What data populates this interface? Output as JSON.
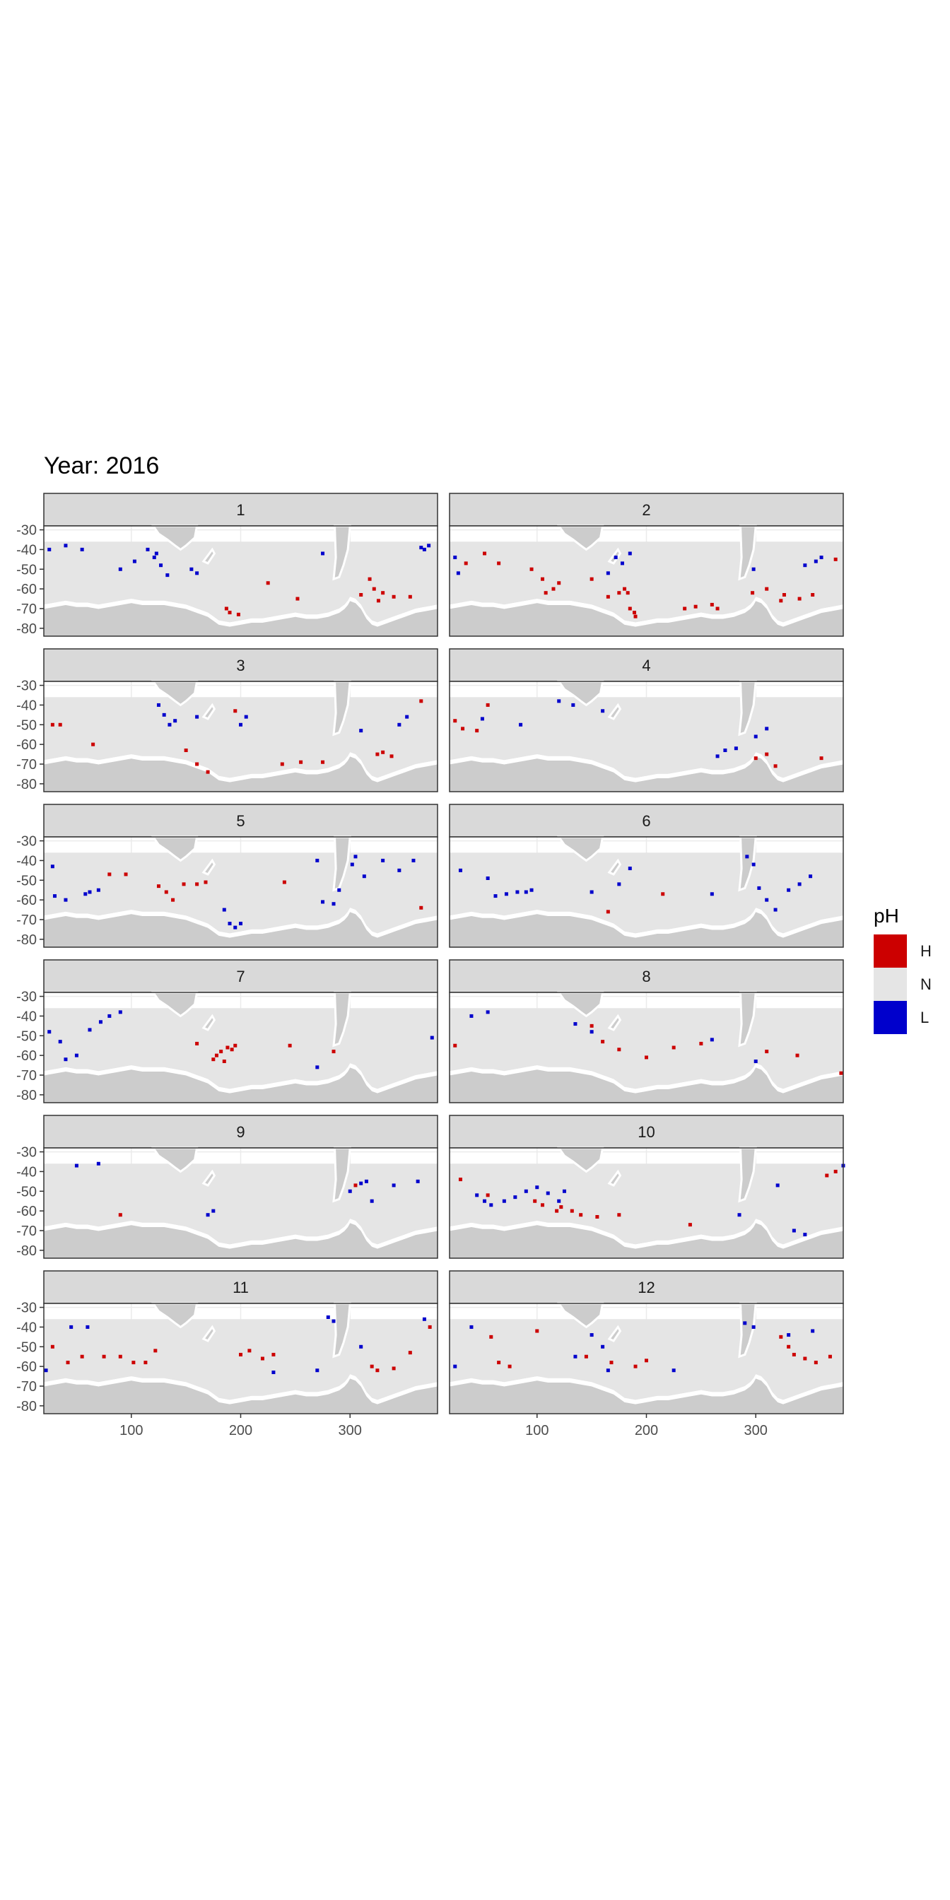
{
  "title": "Year: 2016",
  "legend": {
    "title": "pH",
    "items": [
      {
        "label": "H",
        "color": "#cc0000"
      },
      {
        "label": "N",
        "color": "#e5e5e5"
      },
      {
        "label": "L",
        "color": "#0000cc"
      }
    ]
  },
  "chart_data": {
    "type": "heatmap",
    "title": "Year: 2016",
    "facet_variable": "month",
    "xlabel": "",
    "ylabel": "",
    "xlim": [
      20,
      380
    ],
    "ylim": [
      -84,
      -28
    ],
    "x_ticks": [
      100,
      200,
      300
    ],
    "y_ticks": [
      -30,
      -40,
      -50,
      -60,
      -70,
      -80
    ],
    "y_tick_labels": [
      "-30",
      "-40",
      "-50",
      "-60",
      "-70",
      "-80"
    ],
    "grid": true,
    "legend_position": "right",
    "categories": [
      "H",
      "N",
      "L"
    ],
    "colors": {
      "H": "#cc0000",
      "N": "#e5e5e5",
      "L": "#0000cc",
      "land": "#cccccc"
    },
    "panels": [
      {
        "label": "1",
        "high": [
          [
            190,
            -72
          ],
          [
            187,
            -70
          ],
          [
            198,
            -73
          ],
          [
            225,
            -57
          ],
          [
            252,
            -65
          ],
          [
            318,
            -55
          ],
          [
            322,
            -60
          ],
          [
            326,
            -66
          ],
          [
            330,
            -62
          ],
          [
            340,
            -64
          ],
          [
            355,
            -64
          ],
          [
            310,
            -63
          ]
        ],
        "low": [
          [
            25,
            -40
          ],
          [
            40,
            -38
          ],
          [
            55,
            -40
          ],
          [
            90,
            -50
          ],
          [
            103,
            -46
          ],
          [
            115,
            -40
          ],
          [
            121,
            -44
          ],
          [
            123,
            -42
          ],
          [
            127,
            -48
          ],
          [
            133,
            -53
          ],
          [
            155,
            -50
          ],
          [
            160,
            -52
          ],
          [
            275,
            -42
          ],
          [
            365,
            -39
          ],
          [
            368,
            -40
          ],
          [
            372,
            -38
          ]
        ]
      },
      {
        "label": "2",
        "high": [
          [
            35,
            -47
          ],
          [
            52,
            -42
          ],
          [
            65,
            -47
          ],
          [
            95,
            -50
          ],
          [
            105,
            -55
          ],
          [
            108,
            -62
          ],
          [
            115,
            -60
          ],
          [
            120,
            -57
          ],
          [
            150,
            -55
          ],
          [
            165,
            -64
          ],
          [
            175,
            -62
          ],
          [
            180,
            -60
          ],
          [
            183,
            -62
          ],
          [
            185,
            -70
          ],
          [
            189,
            -72
          ],
          [
            190,
            -74
          ],
          [
            235,
            -70
          ],
          [
            245,
            -69
          ],
          [
            260,
            -68
          ],
          [
            265,
            -70
          ],
          [
            297,
            -62
          ],
          [
            310,
            -60
          ],
          [
            323,
            -66
          ],
          [
            326,
            -63
          ],
          [
            340,
            -65
          ],
          [
            352,
            -63
          ],
          [
            373,
            -45
          ]
        ],
        "low": [
          [
            25,
            -44
          ],
          [
            28,
            -52
          ],
          [
            165,
            -52
          ],
          [
            172,
            -44
          ],
          [
            178,
            -47
          ],
          [
            185,
            -42
          ],
          [
            298,
            -50
          ],
          [
            345,
            -48
          ],
          [
            355,
            -46
          ],
          [
            360,
            -44
          ]
        ]
      },
      {
        "label": "3",
        "high": [
          [
            28,
            -50
          ],
          [
            35,
            -50
          ],
          [
            65,
            -60
          ],
          [
            150,
            -63
          ],
          [
            160,
            -70
          ],
          [
            170,
            -74
          ],
          [
            195,
            -43
          ],
          [
            238,
            -70
          ],
          [
            255,
            -69
          ],
          [
            275,
            -69
          ],
          [
            325,
            -65
          ],
          [
            330,
            -64
          ],
          [
            338,
            -66
          ],
          [
            365,
            -38
          ]
        ],
        "low": [
          [
            125,
            -40
          ],
          [
            130,
            -45
          ],
          [
            135,
            -50
          ],
          [
            140,
            -48
          ],
          [
            160,
            -46
          ],
          [
            200,
            -50
          ],
          [
            205,
            -46
          ],
          [
            310,
            -53
          ],
          [
            345,
            -50
          ],
          [
            352,
            -46
          ]
        ]
      },
      {
        "label": "4",
        "high": [
          [
            25,
            -48
          ],
          [
            32,
            -52
          ],
          [
            45,
            -53
          ],
          [
            55,
            -40
          ],
          [
            300,
            -67
          ],
          [
            310,
            -65
          ],
          [
            318,
            -71
          ],
          [
            360,
            -67
          ]
        ],
        "low": [
          [
            50,
            -47
          ],
          [
            85,
            -50
          ],
          [
            120,
            -38
          ],
          [
            133,
            -40
          ],
          [
            160,
            -43
          ],
          [
            265,
            -66
          ],
          [
            272,
            -63
          ],
          [
            282,
            -62
          ],
          [
            300,
            -56
          ],
          [
            310,
            -52
          ]
        ]
      },
      {
        "label": "5",
        "high": [
          [
            80,
            -47
          ],
          [
            95,
            -47
          ],
          [
            125,
            -53
          ],
          [
            132,
            -56
          ],
          [
            138,
            -60
          ],
          [
            148,
            -52
          ],
          [
            160,
            -52
          ],
          [
            168,
            -51
          ],
          [
            240,
            -51
          ],
          [
            365,
            -64
          ]
        ],
        "low": [
          [
            28,
            -43
          ],
          [
            30,
            -58
          ],
          [
            40,
            -60
          ],
          [
            58,
            -57
          ],
          [
            62,
            -56
          ],
          [
            70,
            -55
          ],
          [
            185,
            -65
          ],
          [
            190,
            -72
          ],
          [
            195,
            -74
          ],
          [
            200,
            -72
          ],
          [
            270,
            -40
          ],
          [
            275,
            -61
          ],
          [
            285,
            -62
          ],
          [
            290,
            -55
          ],
          [
            302,
            -42
          ],
          [
            305,
            -38
          ],
          [
            313,
            -48
          ],
          [
            330,
            -40
          ],
          [
            345,
            -45
          ],
          [
            358,
            -40
          ]
        ]
      },
      {
        "label": "6",
        "high": [
          [
            165,
            -66
          ],
          [
            215,
            -57
          ]
        ],
        "low": [
          [
            30,
            -45
          ],
          [
            55,
            -49
          ],
          [
            62,
            -58
          ],
          [
            72,
            -57
          ],
          [
            82,
            -56
          ],
          [
            90,
            -56
          ],
          [
            95,
            -55
          ],
          [
            150,
            -56
          ],
          [
            175,
            -52
          ],
          [
            185,
            -44
          ],
          [
            260,
            -57
          ],
          [
            292,
            -38
          ],
          [
            298,
            -42
          ],
          [
            303,
            -54
          ],
          [
            310,
            -60
          ],
          [
            318,
            -65
          ],
          [
            330,
            -55
          ],
          [
            340,
            -52
          ],
          [
            350,
            -48
          ]
        ]
      },
      {
        "label": "7",
        "high": [
          [
            160,
            -54
          ],
          [
            178,
            -60
          ],
          [
            182,
            -58
          ],
          [
            188,
            -56
          ],
          [
            192,
            -57
          ],
          [
            185,
            -63
          ],
          [
            175,
            -62
          ],
          [
            195,
            -55
          ],
          [
            245,
            -55
          ],
          [
            285,
            -58
          ]
        ],
        "low": [
          [
            25,
            -48
          ],
          [
            35,
            -53
          ],
          [
            40,
            -62
          ],
          [
            50,
            -60
          ],
          [
            62,
            -47
          ],
          [
            72,
            -43
          ],
          [
            80,
            -40
          ],
          [
            90,
            -38
          ],
          [
            270,
            -66
          ],
          [
            375,
            -51
          ]
        ]
      },
      {
        "label": "8",
        "high": [
          [
            25,
            -55
          ],
          [
            150,
            -45
          ],
          [
            160,
            -53
          ],
          [
            175,
            -57
          ],
          [
            200,
            -61
          ],
          [
            225,
            -56
          ],
          [
            250,
            -54
          ],
          [
            310,
            -58
          ],
          [
            338,
            -60
          ],
          [
            378,
            -69
          ]
        ],
        "low": [
          [
            40,
            -40
          ],
          [
            55,
            -38
          ],
          [
            135,
            -44
          ],
          [
            150,
            -48
          ],
          [
            260,
            -52
          ],
          [
            300,
            -63
          ]
        ]
      },
      {
        "label": "9",
        "high": [
          [
            90,
            -62
          ],
          [
            305,
            -47
          ]
        ],
        "low": [
          [
            50,
            -37
          ],
          [
            70,
            -36
          ],
          [
            170,
            -62
          ],
          [
            175,
            -60
          ],
          [
            300,
            -50
          ],
          [
            310,
            -46
          ],
          [
            315,
            -45
          ],
          [
            320,
            -55
          ],
          [
            340,
            -47
          ],
          [
            362,
            -45
          ]
        ]
      },
      {
        "label": "10",
        "high": [
          [
            30,
            -44
          ],
          [
            55,
            -52
          ],
          [
            98,
            -55
          ],
          [
            105,
            -57
          ],
          [
            118,
            -60
          ],
          [
            122,
            -58
          ],
          [
            132,
            -60
          ],
          [
            140,
            -62
          ],
          [
            155,
            -63
          ],
          [
            175,
            -62
          ],
          [
            240,
            -67
          ],
          [
            365,
            -42
          ],
          [
            373,
            -40
          ]
        ],
        "low": [
          [
            45,
            -52
          ],
          [
            52,
            -55
          ],
          [
            58,
            -57
          ],
          [
            70,
            -55
          ],
          [
            80,
            -53
          ],
          [
            90,
            -50
          ],
          [
            100,
            -48
          ],
          [
            110,
            -51
          ],
          [
            120,
            -55
          ],
          [
            125,
            -50
          ],
          [
            285,
            -62
          ],
          [
            320,
            -47
          ],
          [
            335,
            -70
          ],
          [
            345,
            -72
          ],
          [
            380,
            -37
          ]
        ]
      },
      {
        "label": "11",
        "high": [
          [
            28,
            -50
          ],
          [
            42,
            -58
          ],
          [
            55,
            -55
          ],
          [
            75,
            -55
          ],
          [
            90,
            -55
          ],
          [
            102,
            -58
          ],
          [
            113,
            -58
          ],
          [
            122,
            -52
          ],
          [
            200,
            -54
          ],
          [
            208,
            -52
          ],
          [
            220,
            -56
          ],
          [
            230,
            -54
          ],
          [
            320,
            -60
          ],
          [
            325,
            -62
          ],
          [
            340,
            -61
          ],
          [
            355,
            -53
          ],
          [
            373,
            -40
          ]
        ],
        "low": [
          [
            22,
            -62
          ],
          [
            45,
            -40
          ],
          [
            60,
            -40
          ],
          [
            280,
            -35
          ],
          [
            285,
            -37
          ],
          [
            230,
            -63
          ],
          [
            270,
            -62
          ],
          [
            310,
            -50
          ],
          [
            368,
            -36
          ]
        ]
      },
      {
        "label": "12",
        "high": [
          [
            58,
            -45
          ],
          [
            65,
            -58
          ],
          [
            75,
            -60
          ],
          [
            100,
            -42
          ],
          [
            145,
            -55
          ],
          [
            168,
            -58
          ],
          [
            190,
            -60
          ],
          [
            200,
            -57
          ],
          [
            323,
            -45
          ],
          [
            330,
            -50
          ],
          [
            335,
            -54
          ],
          [
            345,
            -56
          ],
          [
            355,
            -58
          ],
          [
            368,
            -55
          ]
        ],
        "low": [
          [
            25,
            -60
          ],
          [
            40,
            -40
          ],
          [
            135,
            -55
          ],
          [
            150,
            -44
          ],
          [
            160,
            -50
          ],
          [
            165,
            -62
          ],
          [
            225,
            -62
          ],
          [
            290,
            -38
          ],
          [
            298,
            -40
          ],
          [
            330,
            -44
          ],
          [
            352,
            -42
          ]
        ]
      }
    ]
  }
}
